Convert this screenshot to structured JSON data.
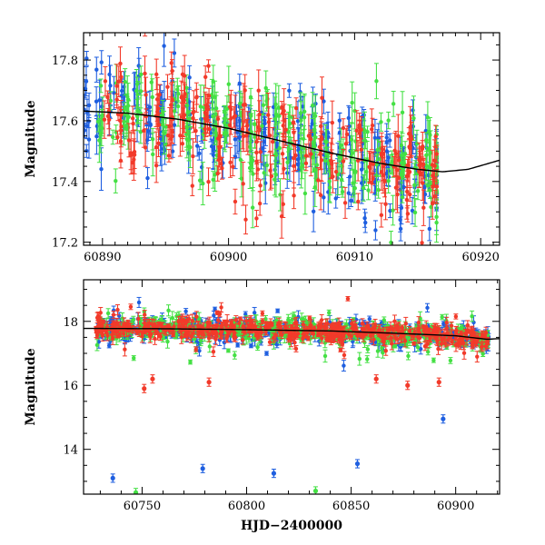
{
  "chart_data": [
    {
      "type": "scatter",
      "xlim": [
        60888.5,
        60921.5
      ],
      "ylim": [
        17.89,
        17.19
      ],
      "y_inverted": true,
      "xticks": [
        60890,
        60900,
        60910,
        60920
      ],
      "yticks": [
        17.2,
        17.4,
        17.6,
        17.8
      ],
      "xlabel": "",
      "ylabel": "Magnitude",
      "grid": false,
      "legend": "none",
      "series": [
        {
          "color": "#1f5fe0",
          "marker": "point-with-errorbar",
          "x_range": [
            60888.5,
            60916.5
          ],
          "values": "dense nightly clusters, mag 17.2-17.9"
        },
        {
          "color": "#44e044",
          "marker": "point-with-errorbar",
          "x_range": [
            60889.5,
            60916.5
          ],
          "values": "dense nightly clusters, mag 17.2-17.9"
        },
        {
          "color": "#f23a2a",
          "marker": "point-with-errorbar",
          "x_range": [
            60889.8,
            60916.6
          ],
          "values": "dense nightly clusters, mag 17.2-17.9"
        }
      ],
      "model_curve": {
        "color": "#000000",
        "points": [
          [
            60888.5,
            17.632
          ],
          [
            60892,
            17.625
          ],
          [
            60896,
            17.605
          ],
          [
            60900,
            17.575
          ],
          [
            60904,
            17.535
          ],
          [
            60908,
            17.495
          ],
          [
            60912,
            17.46
          ],
          [
            60915,
            17.44
          ],
          [
            60917,
            17.432
          ],
          [
            60919,
            17.44
          ],
          [
            60921.5,
            17.47
          ]
        ]
      }
    },
    {
      "type": "scatter",
      "xlim": [
        60722,
        60921
      ],
      "ylim": [
        19.3,
        12.6
      ],
      "y_inverted": true,
      "xticks": [
        60750,
        60800,
        60850,
        60900
      ],
      "yticks": [
        14,
        16,
        18
      ],
      "xlabel": "HJD−2400000",
      "ylabel": "Magnitude",
      "grid": false,
      "legend": "none",
      "series": [
        {
          "color": "#1f5fe0",
          "marker": "point-with-errorbar",
          "x_range": [
            60728,
            60916
          ],
          "values": "baseline ~17.7-17.9 with scatter",
          "outliers": [
            [
              60736,
              13.1
            ],
            [
              60779,
              13.4
            ],
            [
              60813,
              13.25
            ],
            [
              60853,
              13.55
            ],
            [
              60894,
              14.95
            ]
          ]
        },
        {
          "color": "#44e044",
          "marker": "point-with-errorbar",
          "x_range": [
            60728,
            60916
          ],
          "values": "baseline ~17.7-17.9 with scatter",
          "outliers": [
            [
              60747,
              12.65
            ],
            [
              60833,
              12.7
            ]
          ]
        },
        {
          "color": "#f23a2a",
          "marker": "point-with-errorbar",
          "x_range": [
            60728,
            60916
          ],
          "values": "baseline ~17.7-17.9 with scatter",
          "outliers": [
            [
              60751,
              15.9
            ],
            [
              60755,
              16.2
            ],
            [
              60782,
              16.1
            ],
            [
              60862,
              16.2
            ],
            [
              60877,
              16.0
            ],
            [
              60892,
              16.1
            ]
          ]
        }
      ],
      "model_curve": {
        "color": "#000000",
        "points": [
          [
            60722,
            17.78
          ],
          [
            60760,
            17.77
          ],
          [
            60800,
            17.74
          ],
          [
            60840,
            17.7
          ],
          [
            60870,
            17.63
          ],
          [
            60900,
            17.55
          ],
          [
            60915,
            17.44
          ],
          [
            60921,
            17.46
          ]
        ]
      }
    }
  ]
}
